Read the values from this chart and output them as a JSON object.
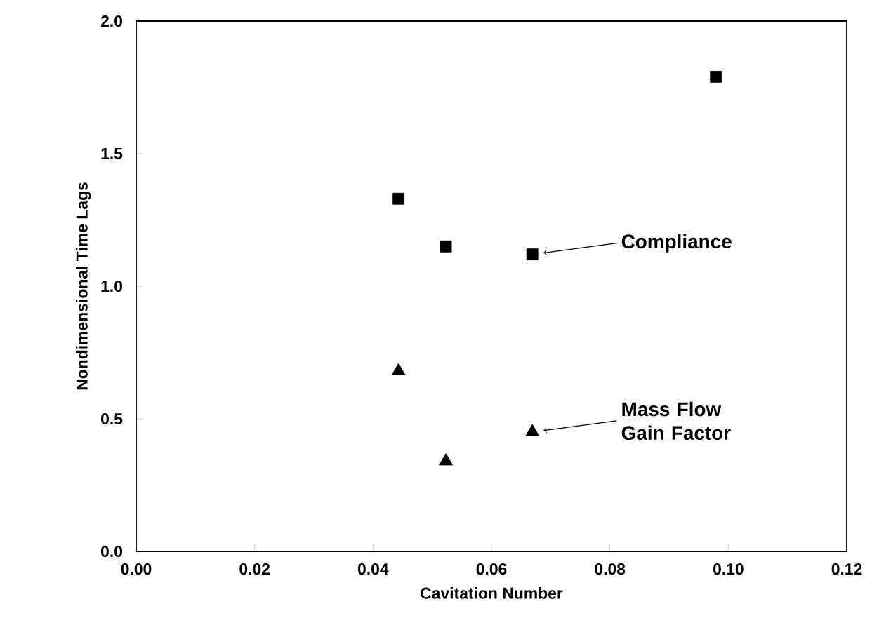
{
  "chart_data": {
    "type": "scatter",
    "xlabel": "Cavitation Number",
    "ylabel": "Nondimensional Time Lags",
    "xlim": [
      0,
      0.12
    ],
    "ylim": [
      0,
      2.0
    ],
    "xticks": [
      {
        "value": 0,
        "label": "0.00"
      },
      {
        "value": 0.02,
        "label": "0.02"
      },
      {
        "value": 0.04,
        "label": "0.04"
      },
      {
        "value": 0.06,
        "label": "0.06"
      },
      {
        "value": 0.08,
        "label": "0.08"
      },
      {
        "value": 0.1,
        "label": "0.10"
      },
      {
        "value": 0.12,
        "label": "0.12"
      }
    ],
    "yticks": [
      {
        "value": 0,
        "label": "0.0"
      },
      {
        "value": 0.5,
        "label": "0.5"
      },
      {
        "value": 1.0,
        "label": "1.0"
      },
      {
        "value": 1.5,
        "label": "1.5"
      },
      {
        "value": 2.0,
        "label": "2.0"
      }
    ],
    "series": [
      {
        "color": "#000000",
        "marker": "square",
        "x": [
          0.0443,
          0.0523,
          0.0669,
          0.0979
        ],
        "values": [
          1.33,
          1.15,
          1.12,
          1.79
        ]
      },
      {
        "color": "#000000",
        "marker": "triangle",
        "x": [
          0.0443,
          0.0523,
          0.0669
        ],
        "values": [
          0.68,
          0.34,
          0.45
        ]
      }
    ],
    "annotations": [
      {
        "text": "Compliance",
        "x": 0.0669,
        "y": 1.12
      },
      {
        "text": "Mass Flow Gain Factor",
        "x": 0.0669,
        "y": 0.45
      }
    ]
  }
}
